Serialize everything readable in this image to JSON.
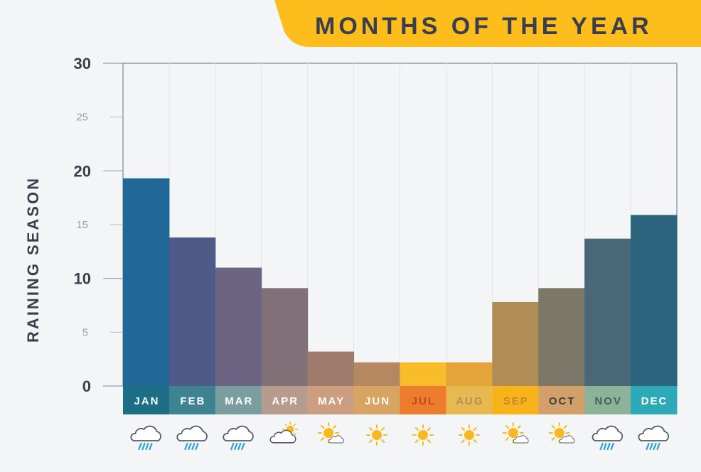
{
  "chart_data": {
    "type": "bar",
    "title": "MONTHS OF THE YEAR",
    "xlabel": "",
    "ylabel": "RAINING SEASON",
    "ylim": [
      0,
      30
    ],
    "yticks_major": [
      0,
      10,
      20,
      30
    ],
    "yticks_minor": [
      5,
      15,
      25
    ],
    "grid": true,
    "categories": [
      "JAN",
      "FEB",
      "MAR",
      "APR",
      "MAY",
      "JUN",
      "JUL",
      "AUG",
      "SEP",
      "OCT",
      "NOV",
      "DEC"
    ],
    "values": [
      19.3,
      13.8,
      11,
      9.1,
      3.2,
      2.2,
      2.2,
      2.2,
      7.8,
      9.1,
      13.7,
      15.9
    ],
    "bar_colors": [
      "#1f6898",
      "#4e5a88",
      "#6b6482",
      "#817078",
      "#9f7b6b",
      "#b68862",
      "#f9bd2a",
      "#e5a43a",
      "#b08c57",
      "#7c7867",
      "#4a6778",
      "#2c647d"
    ],
    "label_bg_colors": [
      "#1c6e84",
      "#3d8392",
      "#7a9ea0",
      "#b59c8d",
      "#cd9d82",
      "#d7a461",
      "#ed7d2c",
      "#e7b950",
      "#f8b31b",
      "#d3a06a",
      "#8cb398",
      "#2caab8"
    ],
    "label_text_colors": [
      "#ffffff",
      "#ffffff",
      "#ffffff",
      "#ffffff",
      "#ffffff",
      "#ffffff",
      "#b94e20",
      "#b28f58",
      "#c0883a",
      "#3a3f4b",
      "#4b5c58",
      "#ffffff"
    ],
    "weather_icons": [
      "rain-cloud-icon",
      "rain-cloud-icon",
      "rain-cloud-icon",
      "partly-cloudy-icon",
      "sun-cloud-icon",
      "sun-icon",
      "sun-icon",
      "sun-icon",
      "sun-cloud-icon",
      "sun-cloud-icon",
      "rain-cloud-icon",
      "rain-cloud-icon"
    ],
    "title_banner_color": "#fdbd1c"
  }
}
